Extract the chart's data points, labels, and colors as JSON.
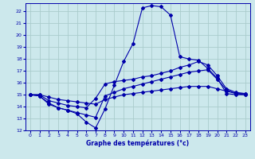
{
  "bg_color": "#cce8ec",
  "grid_color": "#aacccc",
  "line_color": "#0000aa",
  "xlabel": "Graphe des températures (°c)",
  "xlim": [
    -0.5,
    23.5
  ],
  "ylim": [
    12,
    22.7
  ],
  "yticks": [
    12,
    13,
    14,
    15,
    16,
    17,
    18,
    19,
    20,
    21,
    22
  ],
  "xticks": [
    0,
    1,
    2,
    3,
    4,
    5,
    6,
    7,
    8,
    9,
    10,
    11,
    12,
    13,
    14,
    15,
    16,
    17,
    18,
    19,
    20,
    21,
    22,
    23
  ],
  "line1_x": [
    0,
    1,
    2,
    3,
    4,
    5,
    6,
    7,
    8,
    9,
    10,
    11,
    12,
    13,
    14,
    15,
    16,
    17,
    18,
    19,
    20,
    21,
    22,
    23
  ],
  "line1_y": [
    15.0,
    14.9,
    14.3,
    13.9,
    13.7,
    13.4,
    12.7,
    12.2,
    13.8,
    15.8,
    17.8,
    19.3,
    22.3,
    22.5,
    22.4,
    21.7,
    18.2,
    18.0,
    17.9,
    17.2,
    16.4,
    15.1,
    15.0,
    15.0
  ],
  "line2_x": [
    0,
    1,
    2,
    3,
    4,
    5,
    6,
    7,
    8,
    9,
    10,
    11,
    12,
    13,
    14,
    15,
    16,
    17,
    18,
    19,
    20,
    21,
    22,
    23
  ],
  "line2_y": [
    15.0,
    15.0,
    14.5,
    14.3,
    14.1,
    14.0,
    13.9,
    14.7,
    15.9,
    16.1,
    16.2,
    16.3,
    16.5,
    16.6,
    16.8,
    17.0,
    17.3,
    17.5,
    17.8,
    17.5,
    16.6,
    15.5,
    15.2,
    15.1
  ],
  "line3_x": [
    0,
    1,
    2,
    3,
    4,
    5,
    6,
    7,
    8,
    9,
    10,
    11,
    12,
    13,
    14,
    15,
    16,
    17,
    18,
    19,
    20,
    21,
    22,
    23
  ],
  "line3_y": [
    15.0,
    14.9,
    14.2,
    13.9,
    13.7,
    13.5,
    13.3,
    13.1,
    14.9,
    15.2,
    15.5,
    15.7,
    15.9,
    16.1,
    16.3,
    16.5,
    16.7,
    16.9,
    17.0,
    17.1,
    16.3,
    15.4,
    15.1,
    15.1
  ],
  "line4_x": [
    0,
    1,
    2,
    3,
    4,
    5,
    6,
    7,
    8,
    9,
    10,
    11,
    12,
    13,
    14,
    15,
    16,
    17,
    18,
    19,
    20,
    21,
    22,
    23
  ],
  "line4_y": [
    15.0,
    15.0,
    14.8,
    14.6,
    14.5,
    14.4,
    14.3,
    14.2,
    14.6,
    14.8,
    15.0,
    15.1,
    15.2,
    15.3,
    15.4,
    15.5,
    15.6,
    15.7,
    15.7,
    15.7,
    15.5,
    15.3,
    15.1,
    15.0
  ]
}
